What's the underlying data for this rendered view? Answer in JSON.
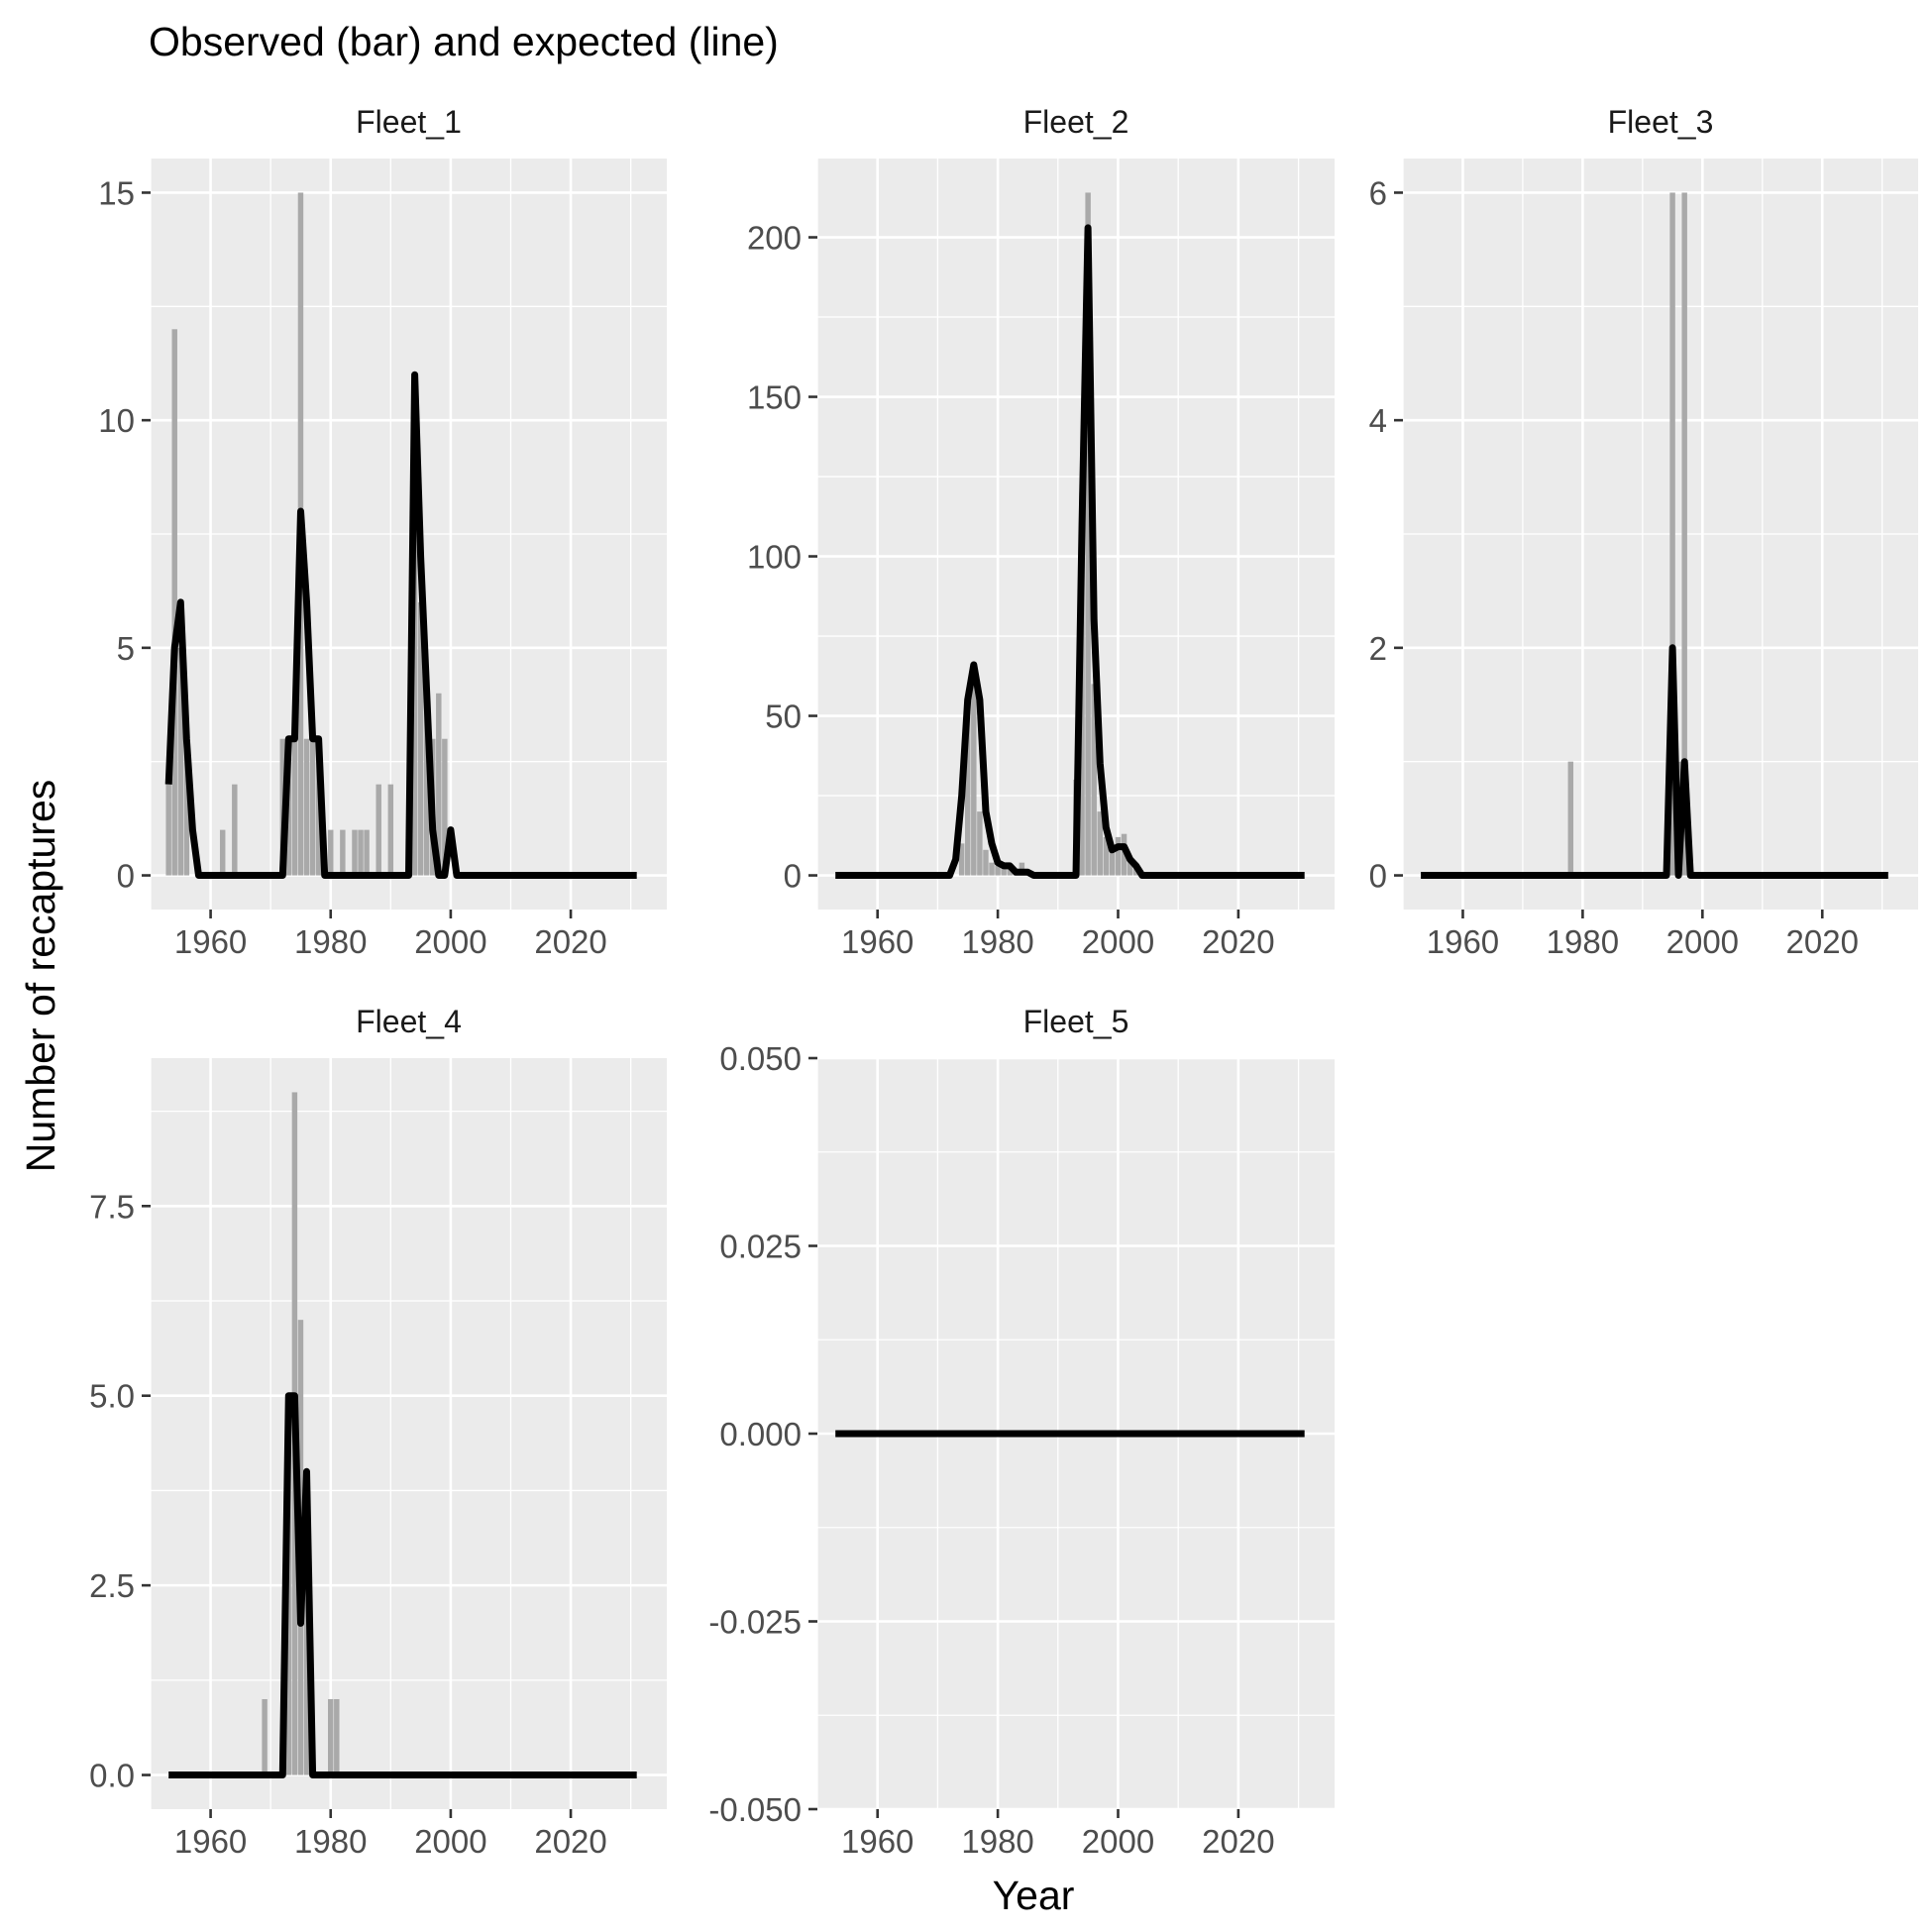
{
  "title": "Observed (bar) and expected (line)",
  "xlabel": "Year",
  "ylabel": "Number of recaptures",
  "colors": {
    "panel_background": "#ebebeb",
    "gridlines": "#ffffff",
    "bars": "#a9a9a9",
    "line": "#000000",
    "tick_text": "#4d4d4d"
  },
  "chart_data": [
    {
      "type": "bar+line",
      "facet": "Fleet_1",
      "xlim": [
        1950,
        2036
      ],
      "ylim": [
        -0.75,
        15.75
      ],
      "xticks": [
        1960,
        1980,
        2000,
        2020
      ],
      "yticks": [
        0,
        5,
        10,
        15
      ],
      "ytick_labels": [
        "0",
        "5",
        "10",
        "15"
      ],
      "observed_bars": [
        {
          "x": 1953,
          "y": 2
        },
        {
          "x": 1954,
          "y": 12
        },
        {
          "x": 1955,
          "y": 5
        },
        {
          "x": 1956,
          "y": 3
        },
        {
          "x": 1962,
          "y": 1
        },
        {
          "x": 1964,
          "y": 2
        },
        {
          "x": 1972,
          "y": 3
        },
        {
          "x": 1973,
          "y": 3
        },
        {
          "x": 1974,
          "y": 3
        },
        {
          "x": 1975,
          "y": 15
        },
        {
          "x": 1976,
          "y": 3
        },
        {
          "x": 1977,
          "y": 3
        },
        {
          "x": 1978,
          "y": 3
        },
        {
          "x": 1980,
          "y": 1
        },
        {
          "x": 1982,
          "y": 1
        },
        {
          "x": 1984,
          "y": 1
        },
        {
          "x": 1985,
          "y": 1
        },
        {
          "x": 1986,
          "y": 1
        },
        {
          "x": 1988,
          "y": 2
        },
        {
          "x": 1990,
          "y": 2
        },
        {
          "x": 1994,
          "y": 11
        },
        {
          "x": 1995,
          "y": 6
        },
        {
          "x": 1996,
          "y": 4
        },
        {
          "x": 1997,
          "y": 3
        },
        {
          "x": 1998,
          "y": 4
        },
        {
          "x": 1999,
          "y": 3
        }
      ],
      "expected_line": [
        [
          1953,
          2
        ],
        [
          1954,
          5
        ],
        [
          1955,
          6
        ],
        [
          1956,
          3
        ],
        [
          1957,
          1
        ],
        [
          1958,
          0
        ],
        [
          1972,
          0
        ],
        [
          1973,
          3
        ],
        [
          1974,
          3
        ],
        [
          1975,
          8
        ],
        [
          1976,
          6
        ],
        [
          1977,
          3
        ],
        [
          1978,
          3
        ],
        [
          1979,
          0
        ],
        [
          1993,
          0
        ],
        [
          1994,
          11
        ],
        [
          1995,
          7
        ],
        [
          1996,
          4
        ],
        [
          1997,
          1
        ],
        [
          1998,
          0
        ],
        [
          1999,
          0
        ],
        [
          2000,
          1
        ],
        [
          2001,
          0
        ],
        [
          2031,
          0
        ]
      ]
    },
    {
      "type": "bar+line",
      "facet": "Fleet_2",
      "xlim": [
        1950,
        2036
      ],
      "ylim": [
        -10.7,
        224.7
      ],
      "xticks": [
        1960,
        1980,
        2000,
        2020
      ],
      "yticks": [
        0,
        50,
        100,
        150,
        200
      ],
      "ytick_labels": [
        "0",
        "50",
        "100",
        "150",
        "200"
      ],
      "observed_bars": [
        {
          "x": 1974,
          "y": 10
        },
        {
          "x": 1975,
          "y": 55
        },
        {
          "x": 1976,
          "y": 60
        },
        {
          "x": 1977,
          "y": 20
        },
        {
          "x": 1978,
          "y": 8
        },
        {
          "x": 1979,
          "y": 4
        },
        {
          "x": 1980,
          "y": 3
        },
        {
          "x": 1981,
          "y": 3
        },
        {
          "x": 1982,
          "y": 3
        },
        {
          "x": 1983,
          "y": 2
        },
        {
          "x": 1984,
          "y": 4
        },
        {
          "x": 1985,
          "y": 1
        },
        {
          "x": 1993,
          "y": 30
        },
        {
          "x": 1994,
          "y": 120
        },
        {
          "x": 1995,
          "y": 214
        },
        {
          "x": 1996,
          "y": 60
        },
        {
          "x": 1997,
          "y": 20
        },
        {
          "x": 1998,
          "y": 12
        },
        {
          "x": 1999,
          "y": 8
        },
        {
          "x": 2000,
          "y": 12
        },
        {
          "x": 2001,
          "y": 13
        },
        {
          "x": 2002,
          "y": 5
        },
        {
          "x": 2003,
          "y": 3
        }
      ],
      "expected_line": [
        [
          1953,
          0
        ],
        [
          1972,
          0
        ],
        [
          1973,
          5
        ],
        [
          1974,
          25
        ],
        [
          1975,
          55
        ],
        [
          1976,
          66
        ],
        [
          1977,
          55
        ],
        [
          1978,
          20
        ],
        [
          1979,
          10
        ],
        [
          1980,
          4
        ],
        [
          1981,
          3
        ],
        [
          1982,
          3
        ],
        [
          1983,
          1
        ],
        [
          1984,
          1
        ],
        [
          1985,
          1
        ],
        [
          1986,
          0
        ],
        [
          1993,
          0
        ],
        [
          1994,
          110
        ],
        [
          1995,
          203
        ],
        [
          1996,
          80
        ],
        [
          1997,
          35
        ],
        [
          1998,
          15
        ],
        [
          1999,
          8
        ],
        [
          2000,
          9
        ],
        [
          2001,
          9
        ],
        [
          2002,
          5
        ],
        [
          2003,
          3
        ],
        [
          2004,
          0
        ],
        [
          2031,
          0
        ]
      ]
    },
    {
      "type": "bar+line",
      "facet": "Fleet_3",
      "xlim": [
        1950,
        2036
      ],
      "ylim": [
        -0.3,
        6.3
      ],
      "xticks": [
        1960,
        1980,
        2000,
        2020
      ],
      "yticks": [
        0,
        2,
        4,
        6
      ],
      "ytick_labels": [
        "0",
        "2",
        "4",
        "6"
      ],
      "observed_bars": [
        {
          "x": 1978,
          "y": 1
        },
        {
          "x": 1995,
          "y": 6
        },
        {
          "x": 1996,
          "y": 1
        },
        {
          "x": 1997,
          "y": 6
        }
      ],
      "expected_line": [
        [
          1953,
          0
        ],
        [
          1994,
          0
        ],
        [
          1995,
          2
        ],
        [
          1996,
          0
        ],
        [
          1997,
          1
        ],
        [
          1998,
          0
        ],
        [
          2031,
          0
        ]
      ]
    },
    {
      "type": "bar+line",
      "facet": "Fleet_4",
      "xlim": [
        1950,
        2036
      ],
      "ylim": [
        -0.45,
        9.45
      ],
      "xticks": [
        1960,
        1980,
        2000,
        2020
      ],
      "yticks": [
        0,
        2.5,
        5,
        7.5
      ],
      "ytick_labels": [
        "0.0",
        "2.5",
        "5.0",
        "7.5"
      ],
      "observed_bars": [
        {
          "x": 1969,
          "y": 1
        },
        {
          "x": 1973,
          "y": 5
        },
        {
          "x": 1974,
          "y": 9
        },
        {
          "x": 1975,
          "y": 6
        },
        {
          "x": 1976,
          "y": 4
        },
        {
          "x": 1980,
          "y": 1
        },
        {
          "x": 1981,
          "y": 1
        }
      ],
      "expected_line": [
        [
          1953,
          0
        ],
        [
          1972,
          0
        ],
        [
          1973,
          5
        ],
        [
          1974,
          5
        ],
        [
          1975,
          2
        ],
        [
          1976,
          4
        ],
        [
          1977,
          0
        ],
        [
          2031,
          0
        ]
      ]
    },
    {
      "type": "bar+line",
      "facet": "Fleet_5",
      "xlim": [
        1950,
        2036
      ],
      "ylim": [
        -0.05,
        0.05
      ],
      "xticks": [
        1960,
        1980,
        2000,
        2020
      ],
      "yticks": [
        -0.05,
        -0.025,
        0,
        0.025,
        0.05
      ],
      "ytick_labels": [
        "-0.050",
        "-0.025",
        "0.000",
        "0.025",
        "0.050"
      ],
      "observed_bars": [],
      "expected_line": [
        [
          1953,
          0
        ],
        [
          2031,
          0
        ]
      ]
    }
  ]
}
